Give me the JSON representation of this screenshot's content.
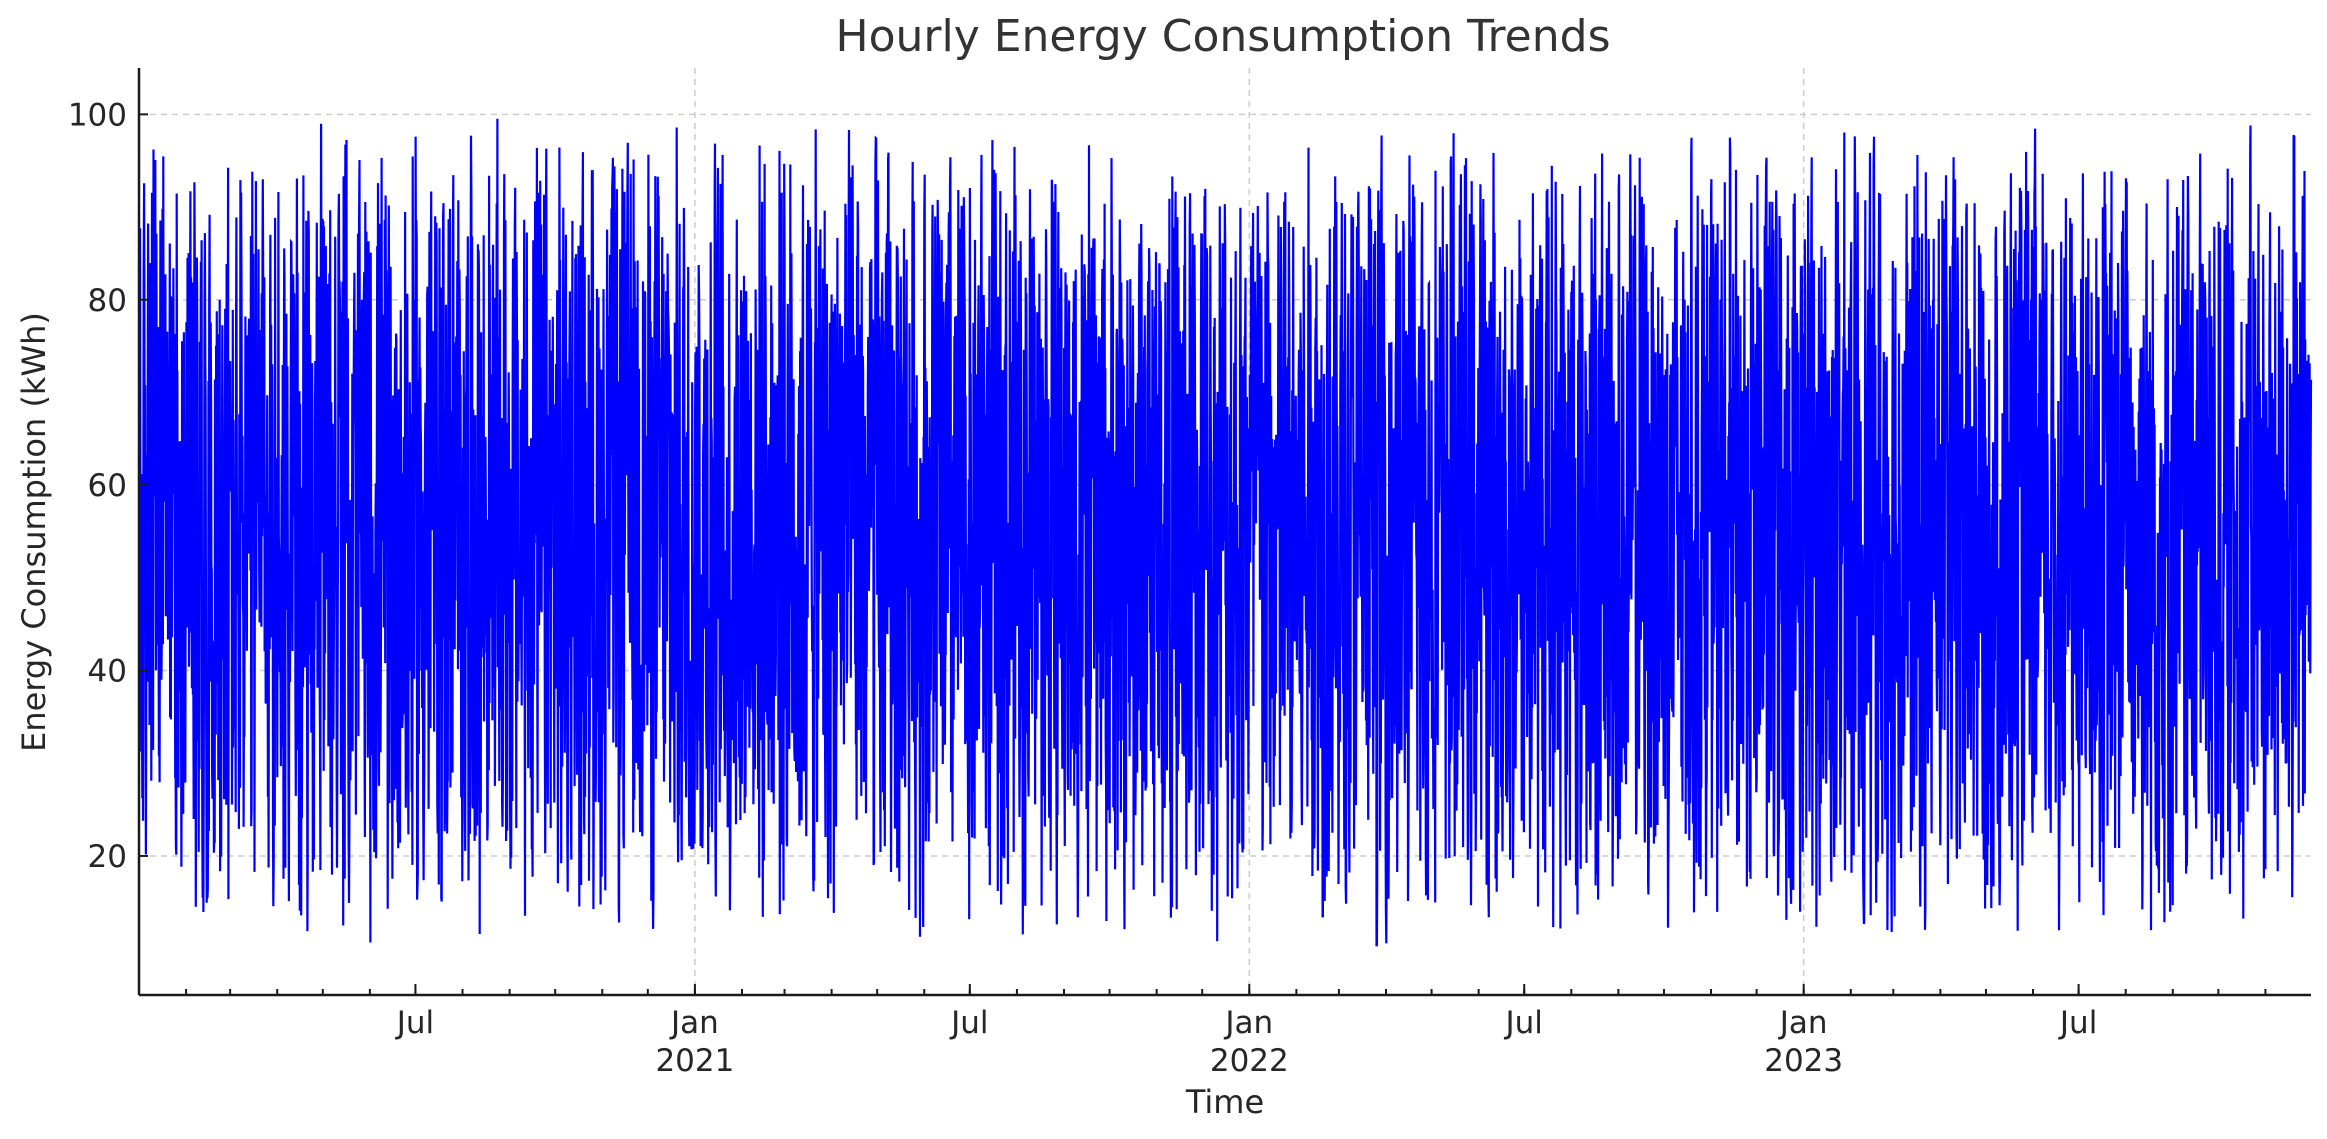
{
  "chart_data": {
    "type": "line",
    "title": "Hourly Energy Consumption Trends",
    "xlabel": "Time",
    "ylabel": "Energy Consumption (kWh)",
    "x_range": [
      "2020-01-01",
      "2023-12-01"
    ],
    "ylim": [
      5,
      105
    ],
    "y_ticks": [
      20,
      40,
      60,
      80,
      100
    ],
    "x_ticks": [
      {
        "date": "2020-07-01",
        "label": "Jul",
        "year": ""
      },
      {
        "date": "2021-01-01",
        "label": "Jan",
        "year": "2021"
      },
      {
        "date": "2021-07-01",
        "label": "Jul",
        "year": ""
      },
      {
        "date": "2022-01-01",
        "label": "Jan",
        "year": "2022"
      },
      {
        "date": "2022-07-01",
        "label": "Jul",
        "year": ""
      },
      {
        "date": "2023-01-01",
        "label": "Jan",
        "year": "2023"
      },
      {
        "date": "2023-07-01",
        "label": "Jul",
        "year": ""
      }
    ],
    "grid": true,
    "value_range": [
      10,
      100
    ],
    "series": [
      {
        "name": "",
        "color": "#0000ff",
        "values": []
      }
    ]
  }
}
